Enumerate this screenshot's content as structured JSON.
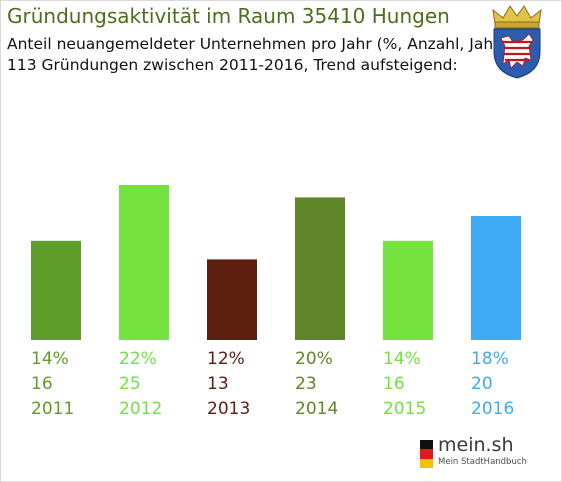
{
  "header": {
    "title": "Gründungsaktivität im Raum 35410 Hungen",
    "subtitle_line1": "Anteil neuangemeldeter Unternehmen pro Jahr (%, Anzahl, Jahr)",
    "subtitle_line2": "113 Gründungen zwischen 2011-2016, Trend aufsteigend:"
  },
  "crest": {
    "icon": "hesse-coat-of-arms-icon"
  },
  "brand": {
    "name": "mein.sh",
    "tagline": "Mein StadtHandbuch",
    "icon": "germany-flag-icon"
  },
  "chart_data": {
    "type": "bar",
    "categories": [
      "2011",
      "2012",
      "2013",
      "2014",
      "2015",
      "2016"
    ],
    "series": [
      {
        "values": [
          16,
          25,
          13,
          23,
          16,
          20
        ]
      }
    ],
    "percent_labels": [
      "14%",
      "22%",
      "12%",
      "20%",
      "14%",
      "18%"
    ],
    "count_labels": [
      "16",
      "25",
      "13",
      "23",
      "16",
      "20"
    ],
    "colors": [
      "#5d9e2a",
      "#74e23f",
      "#5c1f10",
      "#5f8628",
      "#74e23f",
      "#3faaf5"
    ],
    "ylim": [
      0,
      25
    ],
    "grid": false,
    "legend": "none",
    "total": 113,
    "trend": "aufsteigend"
  }
}
